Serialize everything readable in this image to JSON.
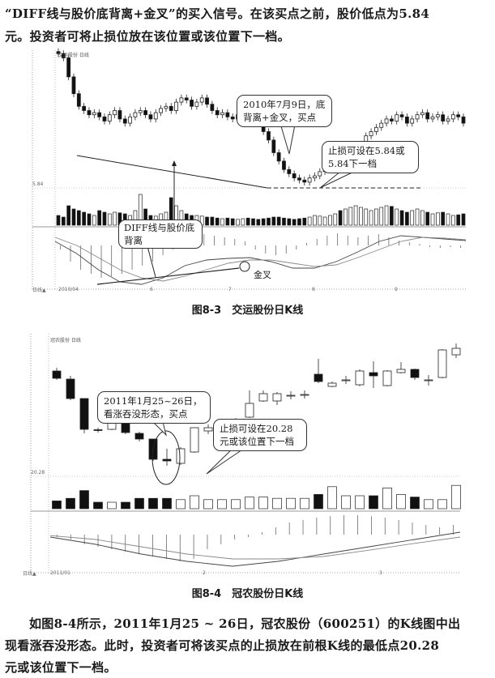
{
  "text_top": {
    "line1": "“DIFF线与股价底背离+金叉”的买入信号。在该买点之前，股价低点为5.84",
    "line2": "元。投资者可将止损位放在该位置或该位置下一档。"
  },
  "figure1": {
    "caption": "图8-3　交运股份日K线",
    "header": "交运股份 日线",
    "price_tick": "5.84",
    "date_labels": [
      "2010/04",
      "6",
      "7",
      "8",
      "9"
    ],
    "callout_buy": "2010年7月9日，底背离+金叉，买点",
    "callout_stop": "止损可设在5.84或5.84下一档",
    "callout_divergence": "DIFF线与股价底背离",
    "label_golden_cross": "金叉",
    "footer_label": "日线▲"
  },
  "figure2": {
    "caption": "图8-4　冠农股份日K线",
    "header": "冠农股份 日线",
    "price_tick": "20.28",
    "date_labels": [
      "2011/01",
      "2",
      "3"
    ],
    "callout_buy": "2011年1月25~26日，看涨吞没形态，买点",
    "callout_stop": "止损可设在20.28元或该位置下一档",
    "footer_label": "日线▲"
  },
  "text_bottom": {
    "line1": "如图8-4所示，2011年1月25 ~ 26日，冠农股份（600251）的K线图中出",
    "line2": "现看涨吞没形态。此时，投资者可将该买点的止损放在前根K线的最低点20.28",
    "line3": "元或该位置下一档。"
  },
  "chart_data": [
    {
      "type": "candlestick",
      "title": "交运股份日K线",
      "price_low_marked": 5.84,
      "closes": [
        8.95,
        8.85,
        8.4,
        8.0,
        7.7,
        7.6,
        7.5,
        7.55,
        7.45,
        7.35,
        7.5,
        7.6,
        7.4,
        7.3,
        7.45,
        7.55,
        7.6,
        7.5,
        7.4,
        7.55,
        7.65,
        7.7,
        7.6,
        7.8,
        7.9,
        7.85,
        7.7,
        7.8,
        7.9,
        7.75,
        7.6,
        7.5,
        7.55,
        7.45,
        7.4,
        7.5,
        7.6,
        7.55,
        7.4,
        7.3,
        7.1,
        6.9,
        6.6,
        6.4,
        6.2,
        6.1,
        6.0,
        5.95,
        5.9,
        6.0,
        6.05,
        6.15,
        6.2,
        6.25,
        6.3,
        6.2,
        6.3,
        6.4,
        6.5,
        6.8,
        7.0,
        7.1,
        7.2,
        7.3,
        7.4,
        7.35,
        7.5,
        7.45,
        7.3,
        7.4,
        7.5,
        7.55,
        7.4,
        7.45,
        7.5,
        7.35,
        7.4,
        7.5,
        7.45,
        7.3
      ],
      "volume_pct": [
        30,
        25,
        60,
        50,
        45,
        40,
        35,
        30,
        45,
        40,
        35,
        40,
        38,
        35,
        30,
        45,
        95,
        50,
        30,
        28,
        35,
        40,
        85,
        60,
        45,
        35,
        30,
        30,
        28,
        25,
        25,
        22,
        20,
        22,
        20,
        18,
        20,
        22,
        20,
        18,
        20,
        22,
        25,
        25,
        22,
        20,
        18,
        20,
        22,
        25,
        30,
        28,
        25,
        30,
        35,
        45,
        50,
        55,
        60,
        55,
        50,
        45,
        50,
        55,
        60,
        58,
        50,
        45,
        40,
        45,
        50,
        45,
        40,
        35,
        38,
        40,
        35,
        30,
        32,
        35
      ],
      "macd_hist": [
        -0.05,
        -0.2,
        -0.3,
        -0.35,
        -0.4,
        -0.38,
        -0.35,
        -0.3,
        -0.25,
        -0.2,
        -0.12,
        -0.05,
        0.1,
        0.15,
        0.14,
        0.12,
        0.1,
        0.08,
        0.05,
        -0.05,
        -0.1,
        -0.12,
        -0.1,
        -0.05,
        0.03,
        0.08,
        0.12,
        0.15,
        0.12,
        0.1,
        0.12,
        0.14,
        0.1,
        0.06,
        0.04,
        0.02,
        -0.02,
        -0.03,
        -0.02,
        -0.03
      ],
      "diff": [
        0.05,
        -0.1,
        -0.3,
        -0.45,
        -0.48,
        -0.4,
        -0.25,
        -0.18,
        -0.16,
        -0.15,
        -0.2,
        -0.28,
        -0.28,
        -0.2,
        -0.08,
        0.05,
        0.12,
        0.1,
        0.08,
        0.06
      ],
      "dea": [
        0.1,
        0.0,
        -0.15,
        -0.3,
        -0.4,
        -0.44,
        -0.38,
        -0.3,
        -0.22,
        -0.18,
        -0.18,
        -0.22,
        -0.26,
        -0.24,
        -0.15,
        -0.05,
        0.05,
        0.1,
        0.09,
        0.07
      ]
    },
    {
      "type": "candlestick",
      "title": "冠农股份日K线",
      "price_low_marked": 20.28,
      "ohlc": [
        [
          22.82,
          22.64,
          22.9,
          22.6
        ],
        [
          22.62,
          22.14,
          22.7,
          22.1
        ],
        [
          22.14,
          21.38,
          22.14,
          21.28
        ],
        [
          21.37,
          21.36,
          21.42,
          21.3
        ],
        [
          21.38,
          21.62,
          21.66,
          21.36
        ],
        [
          21.62,
          21.3,
          21.64,
          21.26
        ],
        [
          21.28,
          21.14,
          21.32,
          21.08
        ],
        [
          21.14,
          20.64,
          21.14,
          20.6
        ],
        [
          20.64,
          20.6,
          20.9,
          20.48
        ],
        [
          20.54,
          20.9,
          20.94,
          20.5
        ],
        [
          20.82,
          21.42,
          21.42,
          20.8
        ],
        [
          21.34,
          21.42,
          21.5,
          21.26
        ],
        [
          21.35,
          21.43,
          21.52,
          21.3
        ],
        [
          21.5,
          21.6,
          21.66,
          21.44
        ],
        [
          21.68,
          22.02,
          22.34,
          21.66
        ],
        [
          22.08,
          22.26,
          22.34,
          22.06
        ],
        [
          22.08,
          22.26,
          22.3,
          21.98
        ],
        [
          22.22,
          22.22,
          22.32,
          22.12
        ],
        [
          22.24,
          22.24,
          22.34,
          22.14
        ],
        [
          22.74,
          22.56,
          23.12,
          22.52
        ],
        [
          22.44,
          22.52,
          22.56,
          22.42
        ],
        [
          22.58,
          22.6,
          22.7,
          22.5
        ],
        [
          22.48,
          22.82,
          22.86,
          22.44
        ],
        [
          22.78,
          22.7,
          23.06,
          22.4
        ],
        [
          22.46,
          22.82,
          22.84,
          22.44
        ],
        [
          22.78,
          22.86,
          23.04,
          22.76
        ],
        [
          22.86,
          22.66,
          22.88,
          22.6
        ],
        [
          22.6,
          22.6,
          22.72,
          22.46
        ],
        [
          22.66,
          23.34,
          23.36,
          22.64
        ],
        [
          23.22,
          23.38,
          23.5,
          23.14
        ]
      ],
      "volume_pct": [
        30,
        40,
        70,
        25,
        25,
        25,
        40,
        40,
        40,
        35,
        50,
        35,
        35,
        35,
        45,
        45,
        40,
        40,
        40,
        55,
        85,
        50,
        50,
        50,
        80,
        55,
        45,
        35,
        35,
        90
      ],
      "macd_hist": [
        -0.05,
        -0.1,
        -0.2,
        -0.25,
        -0.3,
        -0.35,
        -0.4,
        -0.45,
        -0.5,
        -0.55,
        -0.5,
        -0.3,
        -0.2,
        -0.1,
        -0.05,
        0.05,
        0.15,
        0.25,
        0.3,
        0.35,
        0.38,
        0.4,
        0.4,
        0.38,
        0.35,
        0.3,
        0.25,
        0.2,
        0.15,
        0.2
      ],
      "diff": [
        -0.05,
        -0.2,
        -0.4,
        -0.55,
        -0.65,
        -0.55,
        -0.4,
        -0.25,
        -0.1,
        0.05
      ],
      "dea": [
        -0.02,
        -0.1,
        -0.25,
        -0.4,
        -0.5,
        -0.5,
        -0.45,
        -0.32,
        -0.18,
        -0.05
      ]
    }
  ]
}
